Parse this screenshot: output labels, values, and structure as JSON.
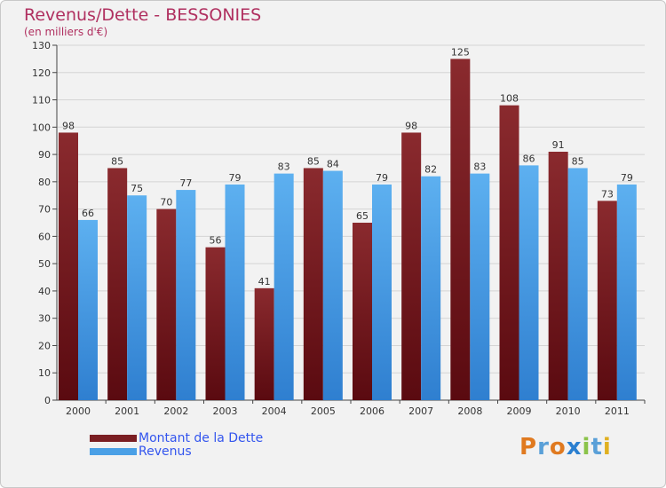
{
  "title": "Revenus/Dette - BESSONIES",
  "subtitle": "(en milliers d'€)",
  "logo_text": "Proxiti",
  "colors": {
    "dette": "#7a1e22",
    "revenus": "#4aa0e6",
    "title": "#b03060",
    "legend_text": "#3355ee"
  },
  "chart_data": {
    "type": "bar",
    "title": "Revenus/Dette - BESSONIES",
    "ylabel": "(en milliers d'€)",
    "xlabel": "",
    "ylim": [
      0,
      130
    ],
    "yticks": [
      0,
      10,
      20,
      30,
      40,
      50,
      60,
      70,
      80,
      90,
      100,
      110,
      120,
      130
    ],
    "grid": true,
    "legend_position": "bottom-left",
    "categories": [
      "2000",
      "2001",
      "2002",
      "2003",
      "2004",
      "2005",
      "2006",
      "2007",
      "2008",
      "2009",
      "2010",
      "2011"
    ],
    "series": [
      {
        "name": "Montant de la Dette",
        "color": "#7a1e22",
        "values": [
          98,
          85,
          70,
          56,
          41,
          85,
          65,
          98,
          125,
          108,
          91,
          73
        ]
      },
      {
        "name": "Revenus",
        "color": "#4aa0e6",
        "values": [
          66,
          75,
          77,
          79,
          83,
          84,
          79,
          82,
          83,
          86,
          85,
          79
        ]
      }
    ]
  }
}
